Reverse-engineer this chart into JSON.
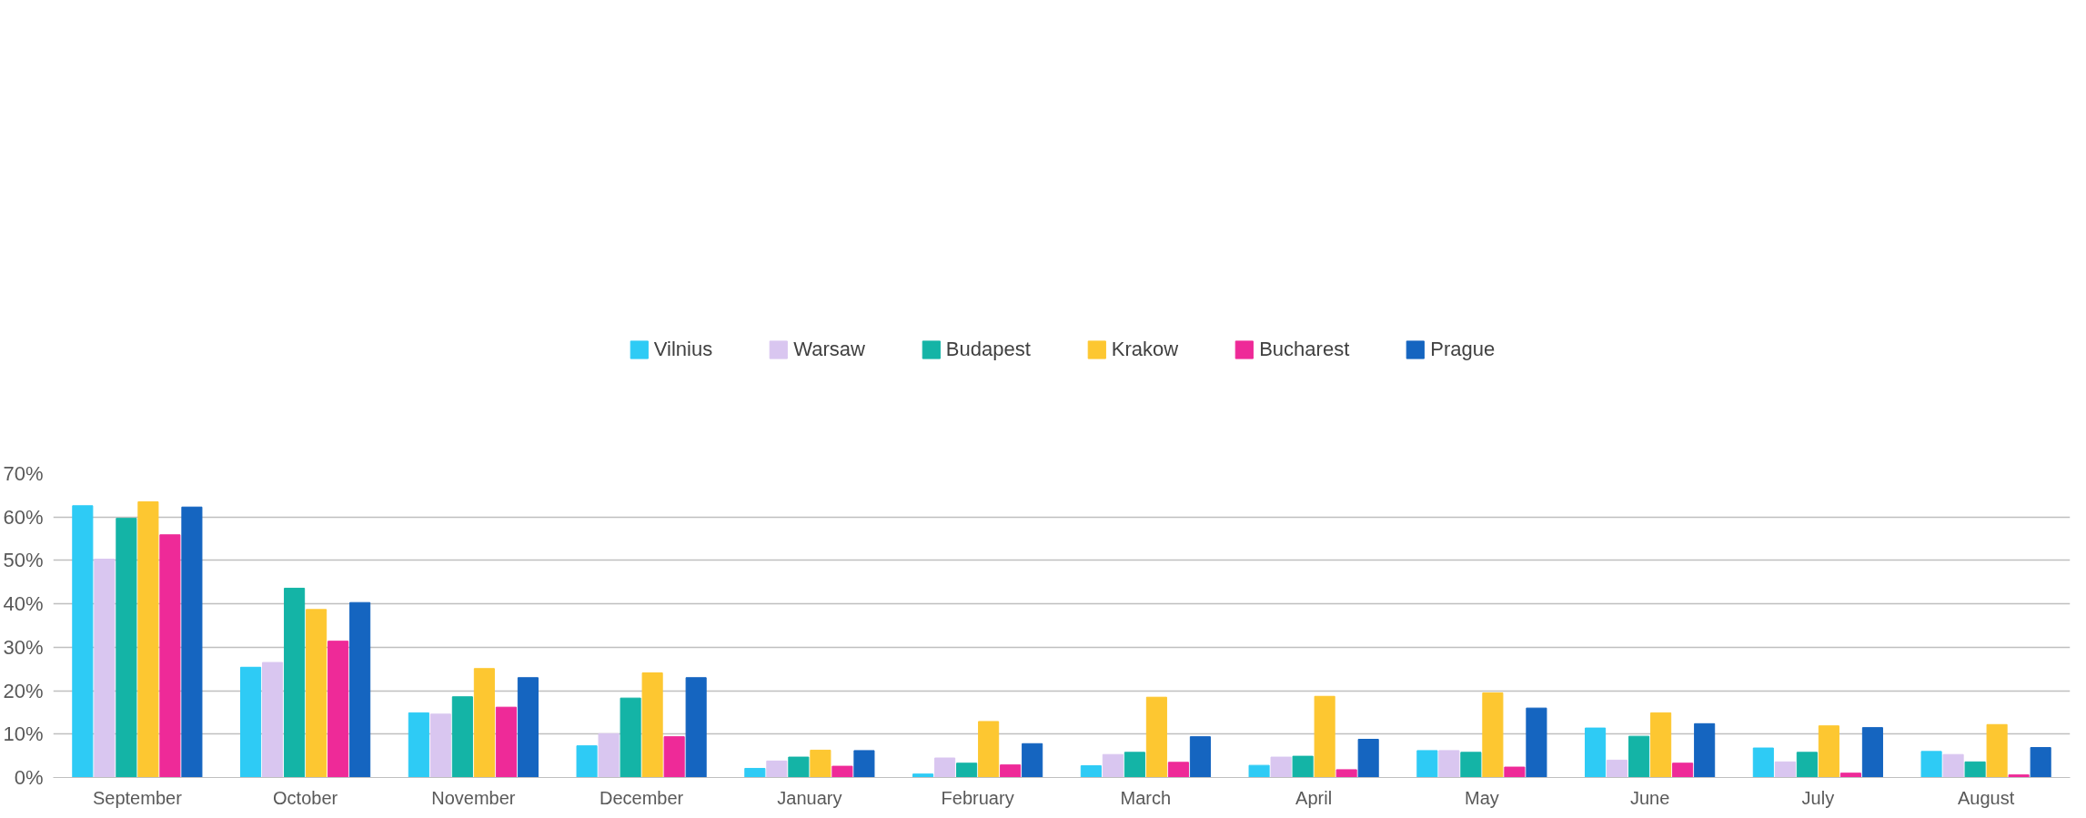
{
  "chart_data": {
    "type": "bar",
    "categories": [
      "September",
      "October",
      "November",
      "December",
      "January",
      "February",
      "March",
      "April",
      "May",
      "June",
      "July",
      "August"
    ],
    "series": [
      {
        "name": "Vilnius",
        "color": "#2ecbf5",
        "values": [
          62.6,
          25.4,
          14.9,
          7.3,
          2.1,
          0.8,
          2.7,
          2.8,
          6.2,
          11.4,
          6.8,
          6.0
        ]
      },
      {
        "name": "Warsaw",
        "color": "#d9c6f0",
        "values": [
          50.3,
          26.5,
          14.6,
          10.1,
          3.8,
          4.5,
          5.3,
          4.7,
          6.2,
          4.0,
          3.6,
          5.3
        ]
      },
      {
        "name": "Budapest",
        "color": "#14b4a6",
        "values": [
          59.7,
          43.6,
          18.6,
          18.3,
          4.7,
          3.3,
          5.8,
          4.9,
          5.8,
          9.5,
          5.8,
          3.6
        ]
      },
      {
        "name": "Krakow",
        "color": "#fdc731",
        "values": [
          63.5,
          38.7,
          25.1,
          24.1,
          6.3,
          12.9,
          18.5,
          18.7,
          19.5,
          14.9,
          11.9,
          12.2
        ]
      },
      {
        "name": "Bucharest",
        "color": "#ee2a98",
        "values": [
          55.9,
          31.4,
          16.2,
          9.4,
          2.6,
          2.9,
          3.5,
          1.8,
          2.4,
          3.3,
          1.0,
          0.6
        ]
      },
      {
        "name": "Prague",
        "color": "#1565c0",
        "values": [
          62.3,
          40.3,
          23.0,
          23.0,
          6.2,
          7.8,
          9.4,
          8.8,
          16.0,
          12.4,
          11.5,
          6.9
        ]
      }
    ],
    "ylim": [
      0,
      70
    ],
    "yticks": [
      {
        "value": 0,
        "label": "0%"
      },
      {
        "value": 10,
        "label": "10%"
      },
      {
        "value": 20,
        "label": "20%"
      },
      {
        "value": 30,
        "label": "30%"
      },
      {
        "value": 40,
        "label": "40%"
      },
      {
        "value": 50,
        "label": "50%"
      },
      {
        "value": 60,
        "label": "60%"
      },
      {
        "value": 70,
        "label": "70%"
      }
    ],
    "grid": "y",
    "legend": "top"
  }
}
